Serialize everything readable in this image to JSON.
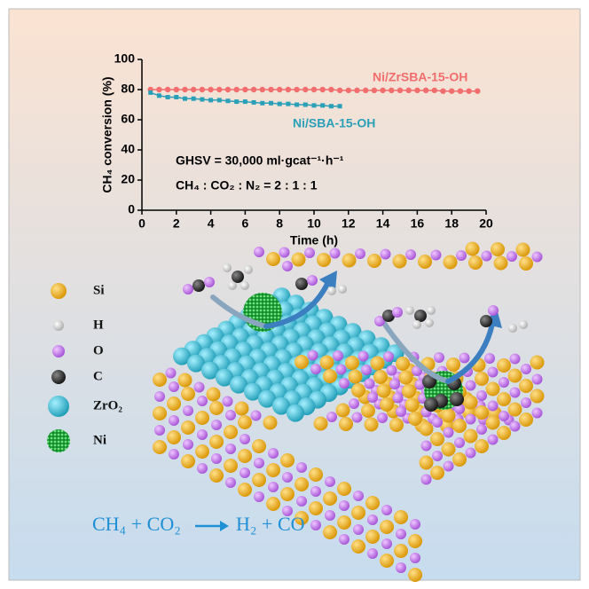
{
  "chart_data": {
    "type": "line",
    "xlabel": "Time (h)",
    "ylabel": "CH₄ conversion (%)",
    "xlim": [
      0,
      20
    ],
    "xticks": [
      0,
      2,
      4,
      6,
      8,
      10,
      12,
      14,
      16,
      18,
      20
    ],
    "ylim": [
      0,
      100
    ],
    "yticks": [
      0,
      20,
      40,
      60,
      80,
      100
    ],
    "annotations": [
      "GHSV = 30,000 ml·gcat⁻¹·h⁻¹",
      "CH₄ : CO₂ : N₂ = 2 : 1 : 1"
    ],
    "series": [
      {
        "name": "Ni/ZrSBA-15-OH",
        "color": "#f26d6d",
        "marker": "circle",
        "x": [
          0.5,
          1,
          1.5,
          2,
          2.5,
          3,
          3.5,
          4,
          4.5,
          5,
          5.5,
          6,
          6.5,
          7,
          7.5,
          8,
          8.5,
          9,
          9.5,
          10,
          10.5,
          11,
          11.5,
          12,
          12.5,
          13,
          13.5,
          14,
          14.5,
          15,
          15.5,
          16,
          16.5,
          17,
          17.5,
          18,
          18.5,
          19,
          19.5
        ],
        "values": [
          80,
          80,
          80,
          80,
          80,
          80,
          80,
          80,
          80,
          80,
          80,
          80,
          80,
          80,
          80,
          80,
          80,
          80,
          80,
          80,
          80,
          80,
          79.5,
          79.5,
          79.5,
          79.5,
          79.5,
          79.5,
          79.5,
          79.5,
          79.5,
          79.5,
          79.5,
          79.5,
          79,
          79,
          79,
          79,
          79
        ]
      },
      {
        "name": "Ni/SBA-15-OH",
        "color": "#2a9fb8",
        "marker": "square",
        "x": [
          0.5,
          1,
          1.5,
          2,
          2.5,
          3,
          3.5,
          4,
          4.5,
          5,
          5.5,
          6,
          6.5,
          7,
          7.5,
          8,
          8.5,
          9,
          9.5,
          10,
          10.5,
          11,
          11.5
        ],
        "values": [
          78,
          76,
          75,
          75,
          74,
          74,
          73.5,
          73,
          73,
          72.5,
          72,
          72,
          71.5,
          71,
          71,
          70.5,
          70.5,
          70,
          70,
          69.5,
          69.5,
          69,
          69
        ]
      }
    ]
  },
  "illustration": {
    "legend": [
      "Si",
      "H",
      "O",
      "C",
      "ZrO₂",
      "Ni"
    ],
    "equation": [
      "CH₄ + CO₂",
      "H₂ + CO"
    ]
  }
}
